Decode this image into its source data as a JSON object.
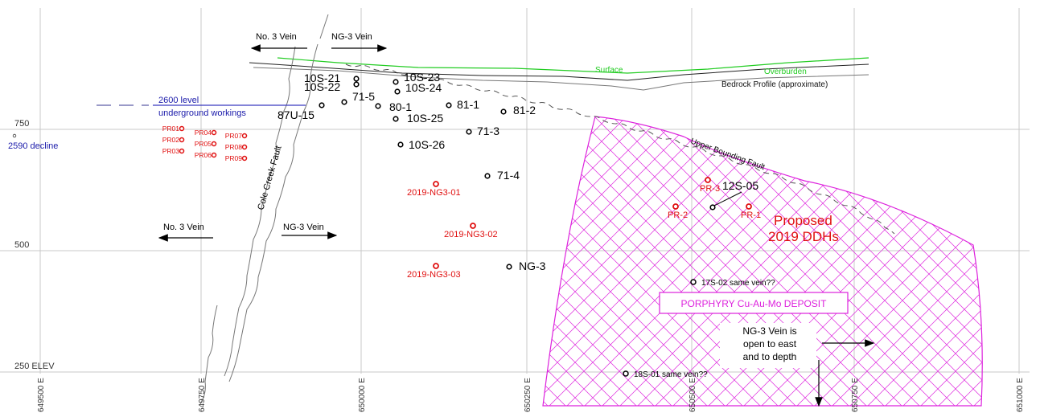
{
  "eastings": [
    "649500 E",
    "649750 E",
    "650000 E",
    "650250 E",
    "650500 E",
    "650750 E",
    "651000 E"
  ],
  "elevations": [
    "750",
    "500",
    "250 ELEV"
  ],
  "surface": {
    "surface_label": "Surface",
    "overburden_label": "Overburden",
    "bedrock_label": "Bedrock Profile (approximate)"
  },
  "veins": {
    "top_no3": "No. 3 Vein",
    "top_ng3": "NG-3 Vein",
    "mid_no3": "No. 3 Vein",
    "mid_ng3": "NG-3 Vein",
    "open": [
      "NG-3 Vein is",
      "open to east",
      "and to depth"
    ]
  },
  "faults": {
    "cole_creek": "Cole Creek Fault",
    "upper_bounding": "Upper Bounding Fault"
  },
  "workings": {
    "level_2600": "2600 level",
    "underground": "underground workings",
    "decline": "2590 decline"
  },
  "deposit_label": "PORPHYRY Cu-Au-Mo DEPOSIT",
  "proposed": [
    "Proposed",
    "2019 DDHs"
  ],
  "colors": {
    "proposed_red": "#e01010",
    "surface_green": "#22cc22",
    "workings_blue": "#1a1aaa",
    "deposit_magenta": "#dd22dd"
  },
  "historic_holes": [
    "10S-21",
    "10S-22",
    "10S-23",
    "10S-24",
    "71-5",
    "80-1",
    "81-1",
    "81-2",
    "87U-15",
    "10S-25",
    "71-3",
    "10S-26",
    "71-4",
    "NG-3",
    "12S-05"
  ],
  "pr_holes": [
    "PR01",
    "PR02",
    "PR03",
    "PR04",
    "PR05",
    "PR06",
    "PR07",
    "PR08",
    "PR09"
  ],
  "proposed_holes": [
    "2019-NG3-01",
    "2019-NG3-02",
    "2019-NG3-03",
    "PR-3",
    "PR-2",
    "PR-1"
  ],
  "notes": [
    "17S-02 same vein??",
    "18S-01 same vein??"
  ]
}
